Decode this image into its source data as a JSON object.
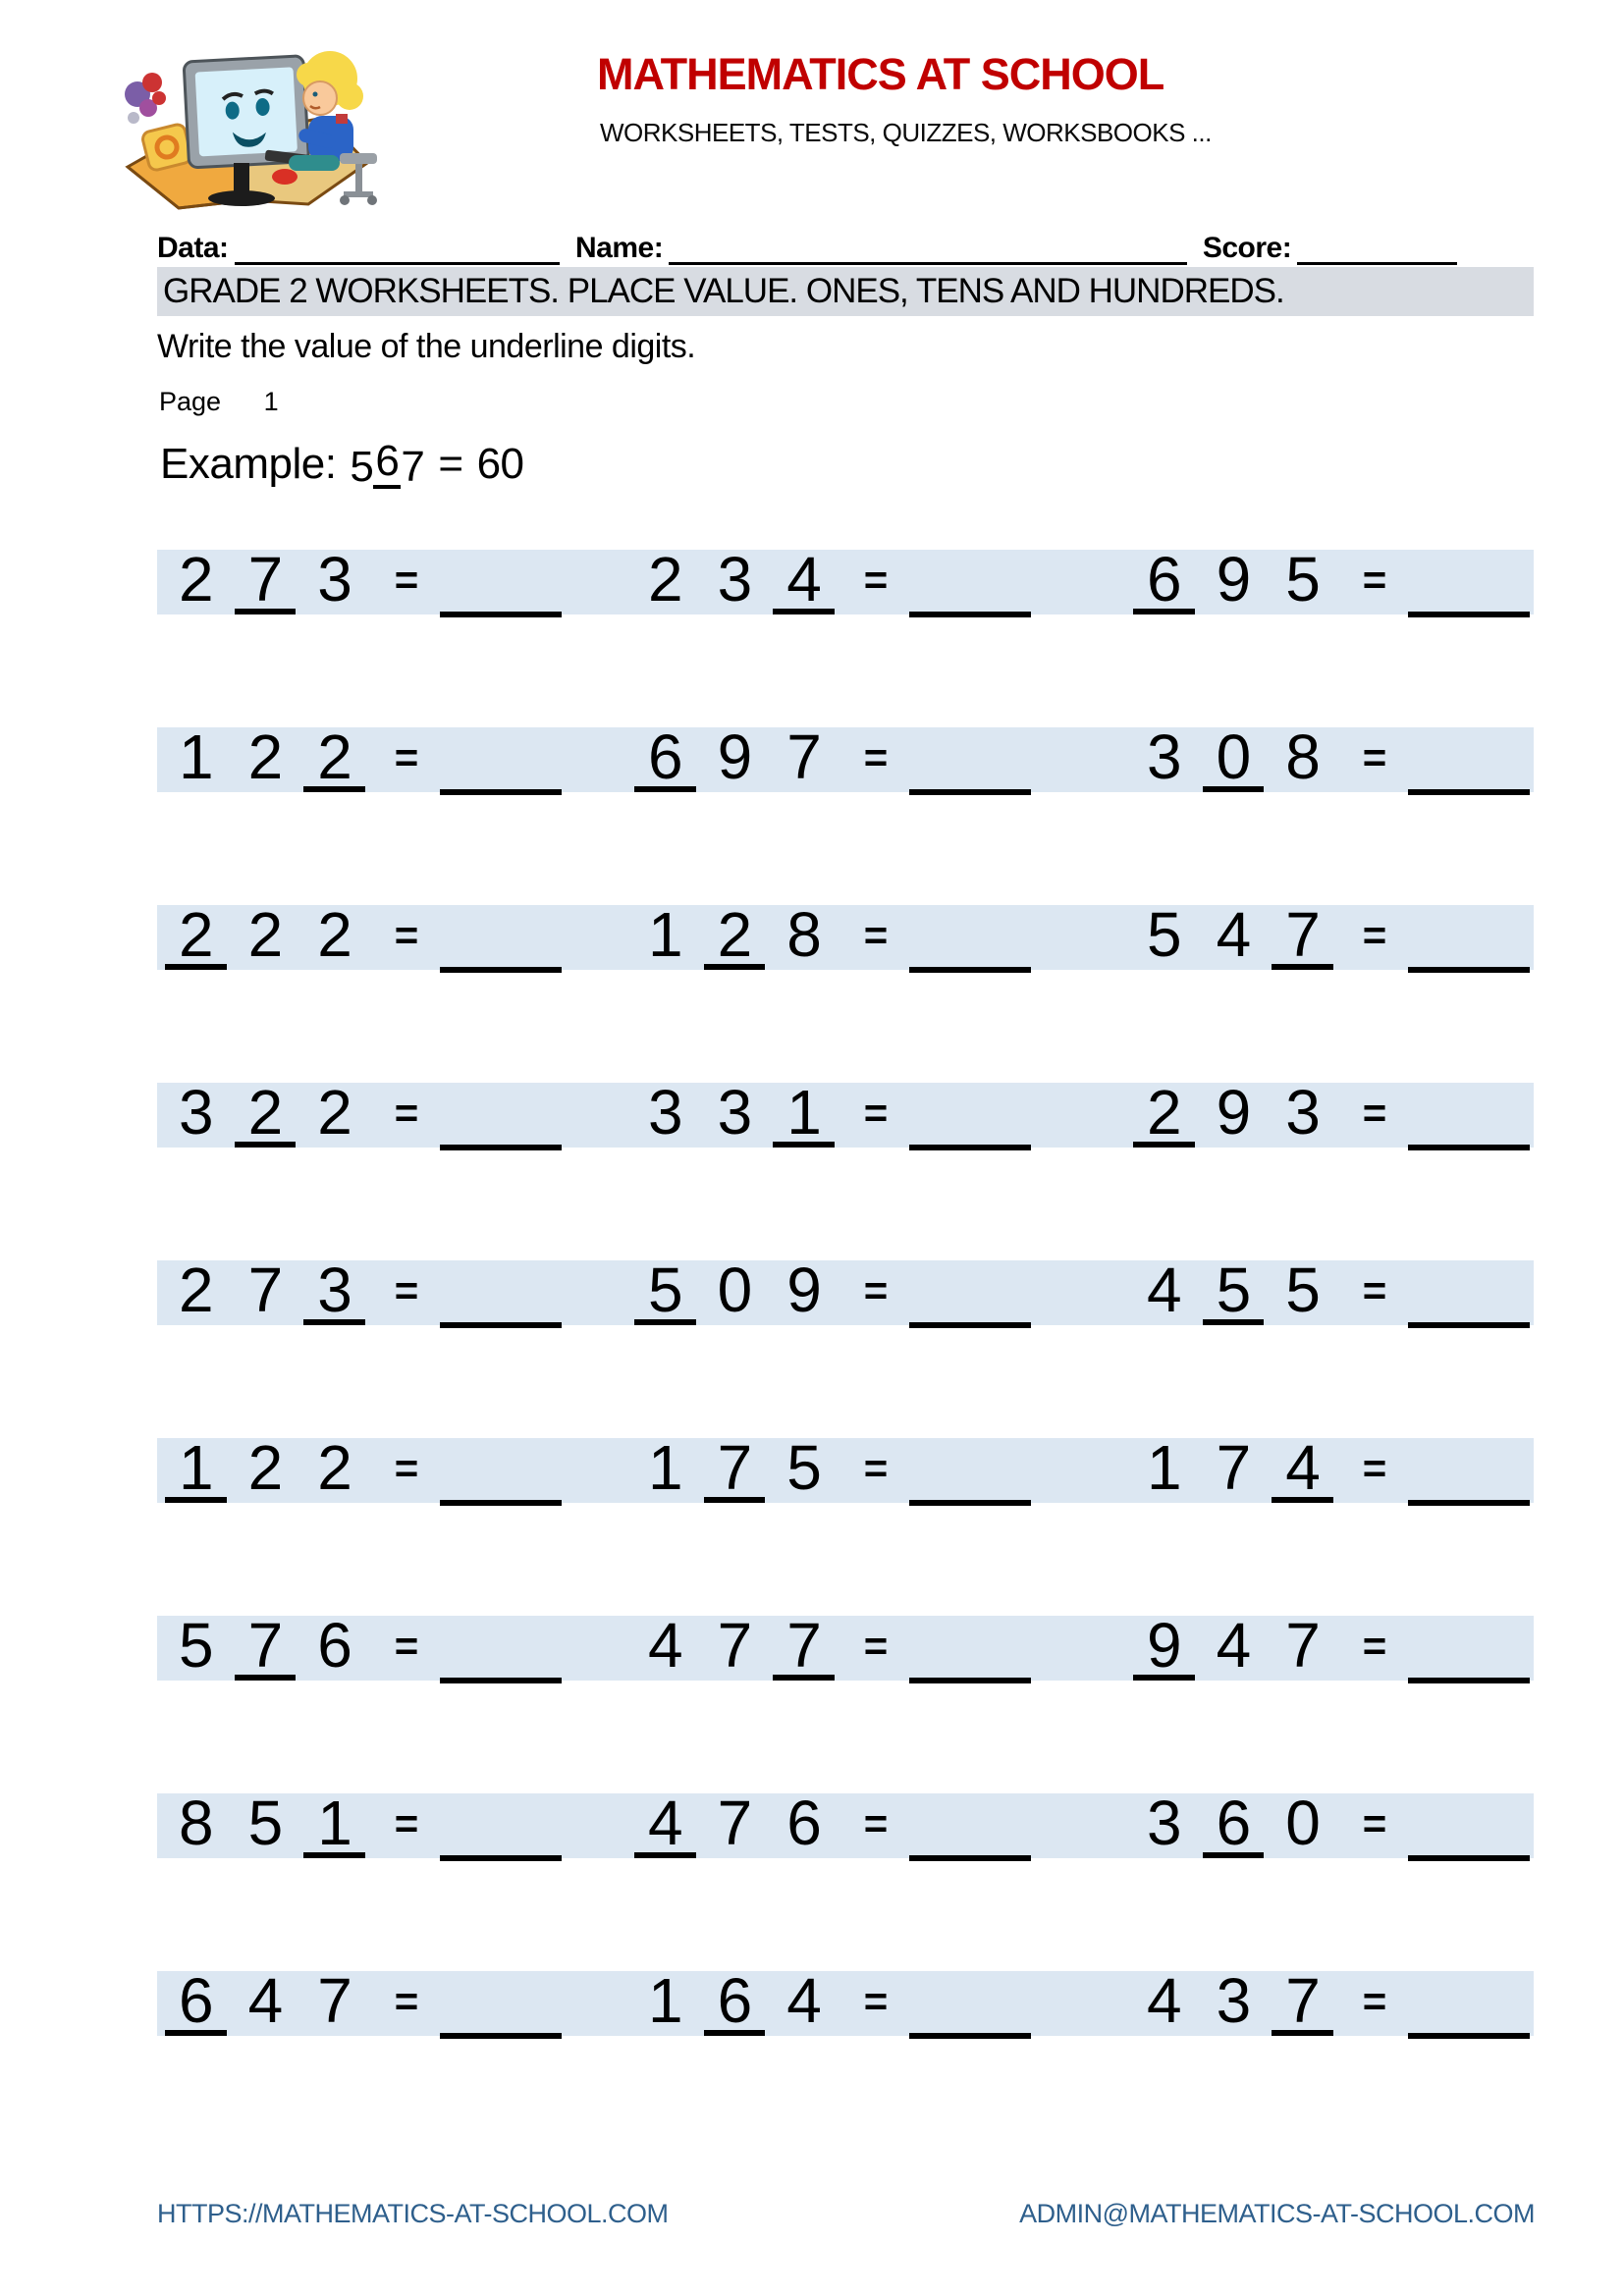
{
  "header": {
    "title": "MATHEMATICS AT SCHOOL",
    "subtitle": "WORKSHEETS, TESTS, QUIZZES, WORKSBOOKS ...",
    "logo_alt": "child at computer on open book"
  },
  "info_line": {
    "data_label": "Data:",
    "name_label": "Name:",
    "score_label": "Score:"
  },
  "section_heading": "GRADE 2 WORKSHEETS. PLACE VALUE. ONES, TENS AND HUNDREDS.",
  "instruction": "Write the value of the underline digits.",
  "page": {
    "label": "Page",
    "number": "1"
  },
  "example": {
    "label": "Example:",
    "digits": [
      "5",
      "6",
      "7"
    ],
    "underlined": 1,
    "equals": "=",
    "answer": "60"
  },
  "problems": {
    "equals_sign": "=",
    "rows": [
      {
        "items": [
          {
            "digits": [
              "2",
              "7",
              "3"
            ],
            "underlined": 1
          },
          {
            "digits": [
              "2",
              "3",
              "4"
            ],
            "underlined": 2
          },
          {
            "digits": [
              "6",
              "9",
              "5"
            ],
            "underlined": 0
          }
        ]
      },
      {
        "items": [
          {
            "digits": [
              "1",
              "2",
              "2"
            ],
            "underlined": 2
          },
          {
            "digits": [
              "6",
              "9",
              "7"
            ],
            "underlined": 0
          },
          {
            "digits": [
              "3",
              "0",
              "8"
            ],
            "underlined": 1
          }
        ]
      },
      {
        "items": [
          {
            "digits": [
              "2",
              "2",
              "2"
            ],
            "underlined": 0
          },
          {
            "digits": [
              "1",
              "2",
              "8"
            ],
            "underlined": 1
          },
          {
            "digits": [
              "5",
              "4",
              "7"
            ],
            "underlined": 2
          }
        ]
      },
      {
        "items": [
          {
            "digits": [
              "3",
              "2",
              "2"
            ],
            "underlined": 1
          },
          {
            "digits": [
              "3",
              "3",
              "1"
            ],
            "underlined": 2
          },
          {
            "digits": [
              "2",
              "9",
              "3"
            ],
            "underlined": 0
          }
        ]
      },
      {
        "items": [
          {
            "digits": [
              "2",
              "7",
              "3"
            ],
            "underlined": 2
          },
          {
            "digits": [
              "5",
              "0",
              "9"
            ],
            "underlined": 0
          },
          {
            "digits": [
              "4",
              "5",
              "5"
            ],
            "underlined": 1
          }
        ]
      },
      {
        "items": [
          {
            "digits": [
              "1",
              "2",
              "2"
            ],
            "underlined": 0
          },
          {
            "digits": [
              "1",
              "7",
              "5"
            ],
            "underlined": 1
          },
          {
            "digits": [
              "1",
              "7",
              "4"
            ],
            "underlined": 2
          }
        ]
      },
      {
        "items": [
          {
            "digits": [
              "5",
              "7",
              "6"
            ],
            "underlined": 1
          },
          {
            "digits": [
              "4",
              "7",
              "7"
            ],
            "underlined": 2
          },
          {
            "digits": [
              "9",
              "4",
              "7"
            ],
            "underlined": 0
          }
        ]
      },
      {
        "items": [
          {
            "digits": [
              "8",
              "5",
              "1"
            ],
            "underlined": 2
          },
          {
            "digits": [
              "4",
              "7",
              "6"
            ],
            "underlined": 0
          },
          {
            "digits": [
              "3",
              "6",
              "0"
            ],
            "underlined": 1
          }
        ]
      },
      {
        "items": [
          {
            "digits": [
              "6",
              "4",
              "7"
            ],
            "underlined": 0
          },
          {
            "digits": [
              "1",
              "6",
              "4"
            ],
            "underlined": 1
          },
          {
            "digits": [
              "4",
              "3",
              "7"
            ],
            "underlined": 2
          }
        ]
      }
    ]
  },
  "footer": {
    "website": "HTTPS://MATHEMATICS-AT-SCHOOL.COM",
    "email": "ADMIN@MATHEMATICS-AT-SCHOOL.COM"
  },
  "colors": {
    "title_red": "#c00000",
    "row_band_blue": "#dce7f2",
    "heading_band_gray": "#d8dce2",
    "footer_blue": "#2e5f8c"
  }
}
